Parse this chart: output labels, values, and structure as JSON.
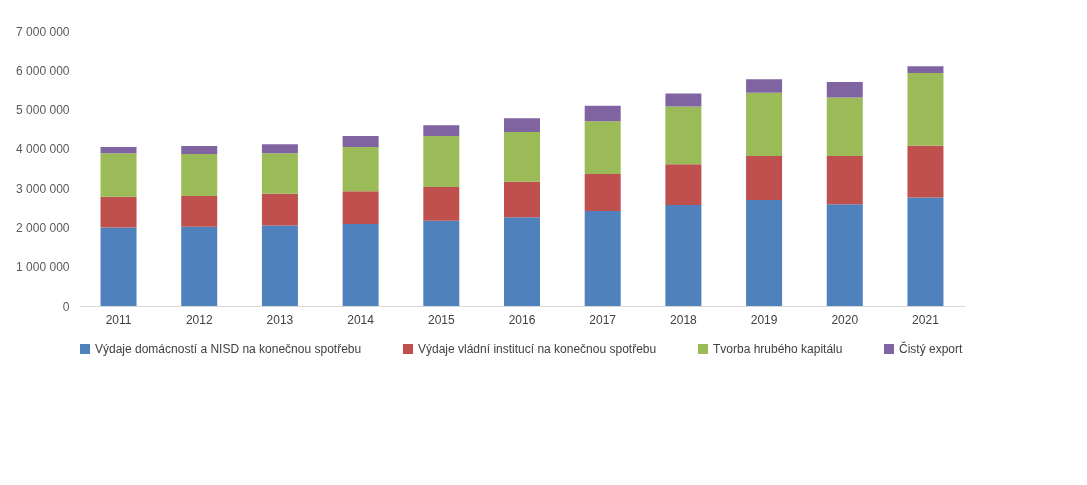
{
  "chart_data": {
    "type": "bar",
    "stacked": true,
    "categories": [
      "2011",
      "2012",
      "2013",
      "2014",
      "2015",
      "2016",
      "2017",
      "2018",
      "2019",
      "2020",
      "2021"
    ],
    "series": [
      {
        "name": "Výdaje domácností a NISD na konečnou spotřebu",
        "color": "#4f81bd",
        "values": [
          2000000,
          2020000,
          2050000,
          2090000,
          2170000,
          2260000,
          2420000,
          2570000,
          2700000,
          2590000,
          2760000
        ]
      },
      {
        "name": "Výdaje vládní institucí na konečnou spotřebu",
        "color": "#c0504d",
        "values": [
          780000,
          780000,
          810000,
          830000,
          860000,
          900000,
          940000,
          1040000,
          1120000,
          1230000,
          1320000
        ]
      },
      {
        "name": "Tvorba hrubého kapitálu",
        "color": "#9bbb59",
        "values": [
          1110000,
          1070000,
          1030000,
          1130000,
          1300000,
          1270000,
          1340000,
          1470000,
          1610000,
          1490000,
          1850000
        ]
      },
      {
        "name": "Čistý export",
        "color": "#8064a2",
        "values": [
          160000,
          200000,
          230000,
          280000,
          270000,
          350000,
          400000,
          330000,
          340000,
          390000,
          170000
        ]
      }
    ],
    "ylim": [
      0,
      7000000
    ],
    "yticks": [
      {
        "value": 0,
        "label": "0"
      },
      {
        "value": 1000000,
        "label": "1 000 000"
      },
      {
        "value": 2000000,
        "label": "2 000 000"
      },
      {
        "value": 3000000,
        "label": "3 000 000"
      },
      {
        "value": 4000000,
        "label": "4 000 000"
      },
      {
        "value": 5000000,
        "label": "5 000 000"
      },
      {
        "value": 6000000,
        "label": "6 000 000"
      },
      {
        "value": 7000000,
        "label": "7 000 000"
      }
    ],
    "grid": false,
    "legend": "bottom"
  }
}
